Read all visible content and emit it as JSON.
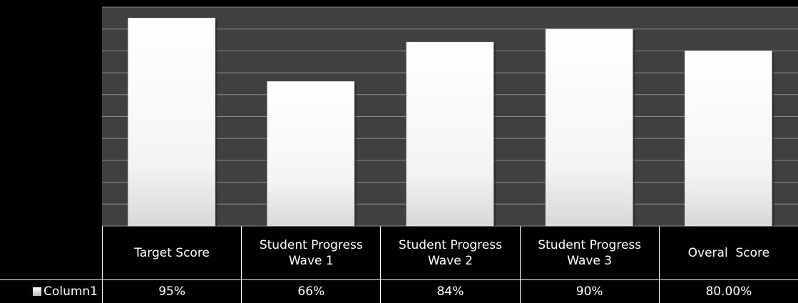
{
  "chart_data": {
    "type": "bar",
    "categories": [
      "Target Score",
      "Student Progress Wave 1",
      "Student Progress Wave 2",
      "Student Progress Wave 3",
      "Overal  Score"
    ],
    "series": [
      {
        "name": "Column1",
        "color": "#ffffff",
        "values": [
          95,
          66,
          84,
          90,
          80
        ],
        "value_labels": [
          "95%",
          "66%",
          "84%",
          "90%",
          "80.00%"
        ]
      }
    ],
    "ylim": [
      0,
      100
    ],
    "yticks": [
      0,
      10,
      20,
      30,
      40,
      50,
      60,
      70,
      80,
      90,
      100
    ],
    "grid": true
  }
}
